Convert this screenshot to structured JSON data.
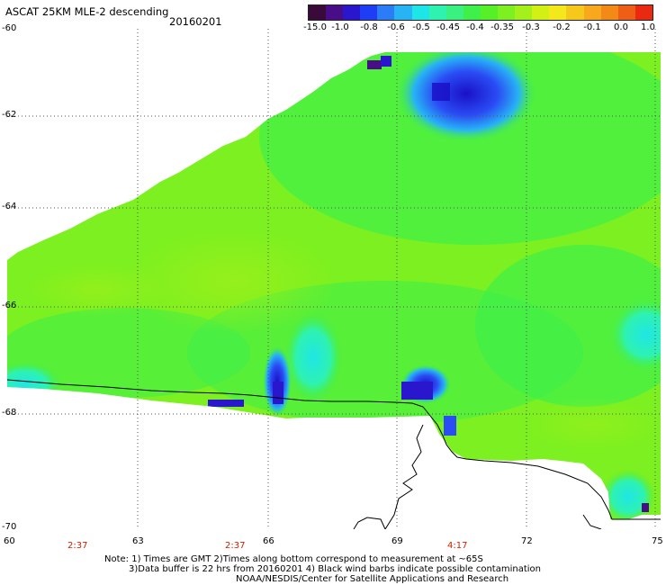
{
  "header": {
    "title": "ASCAT 25KM MLE-2 descending",
    "date": "20160201"
  },
  "colorbar": {
    "colors": [
      "#3a0a3a",
      "#4a0d88",
      "#2a16cc",
      "#1f3df5",
      "#2a7cf7",
      "#28b3f5",
      "#1fe6e6",
      "#2ef2b0",
      "#39f080",
      "#3fef4a",
      "#56f028",
      "#7cf020",
      "#a4f01a",
      "#d2f014",
      "#f2e81c",
      "#f7c81c",
      "#f8a81c",
      "#f38a18",
      "#ef5e16",
      "#ea2a10"
    ],
    "labels": [
      "-15.0",
      "-1.0",
      "-0.8",
      "-0.6",
      "-0.5",
      "-0.45",
      "-0.4",
      "-0.35",
      "-0.3",
      "-0.2",
      "-0.1",
      "0.0",
      "1.0"
    ]
  },
  "axes": {
    "y_ticks": [
      "-60",
      "-62",
      "-64",
      "-66",
      "-68",
      "-70"
    ],
    "x_ticks": [
      "60",
      "63",
      "66",
      "69",
      "72",
      "75"
    ]
  },
  "times": [
    "2:37",
    "2:37",
    "4:17"
  ],
  "notes": {
    "line1": "Note: 1) Times are GMT 2)Times along bottom correspond to measurement at ~65S",
    "line2": "3)Data buffer is 22 hrs from 20160201 4) Black wind barbs indicate possible contamination",
    "line3": "NOAA/NESDIS/Center for Satellite Applications and Research"
  }
}
